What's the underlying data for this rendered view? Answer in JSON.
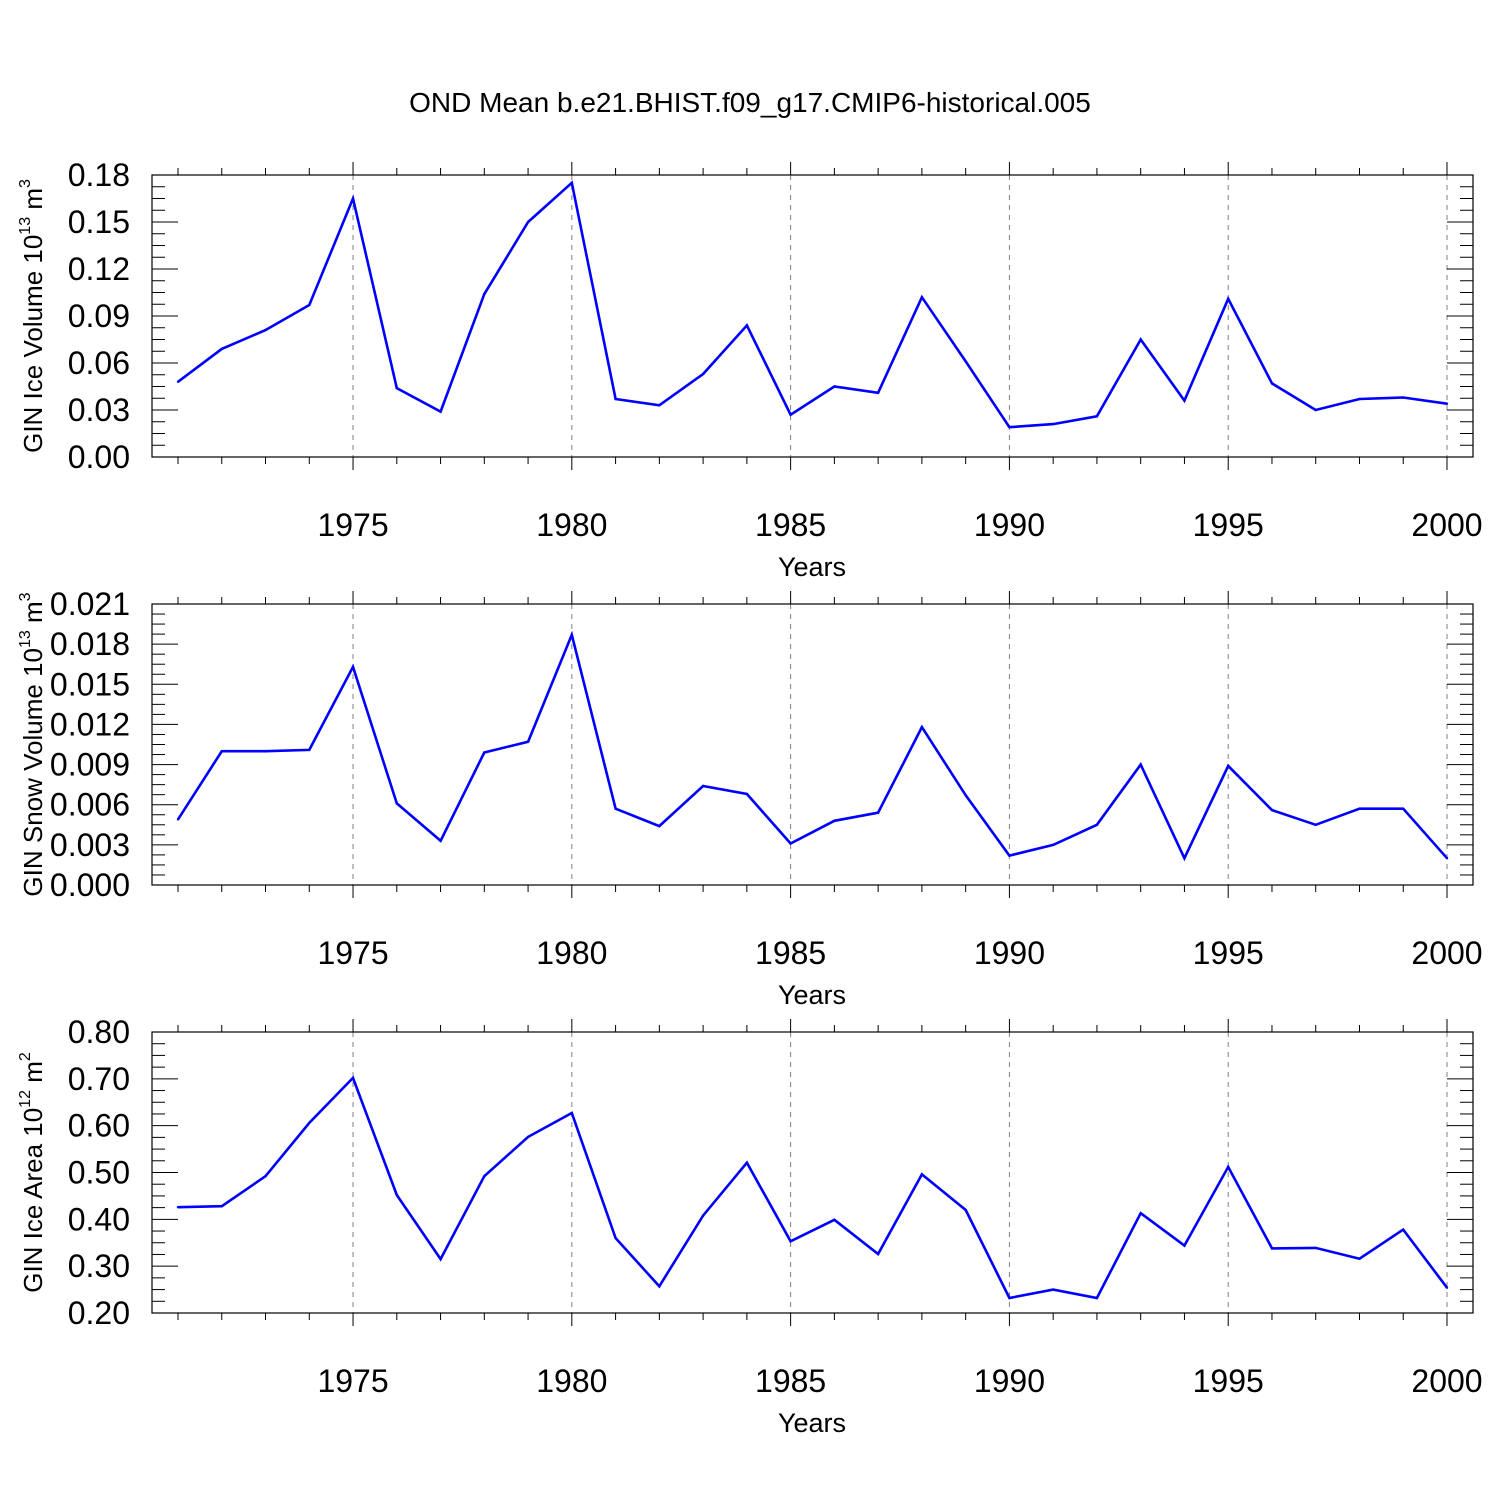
{
  "title": "OND Mean b.e21.BHIST.f09_g17.CMIP6-historical.005",
  "colors": {
    "line": "#0000ff",
    "axis": "#000000",
    "grid": "#808080"
  },
  "chart_data": [
    {
      "type": "line",
      "title": "",
      "xlabel": "Years",
      "ylabel": "GIN Ice Volume 10",
      "ylabel_exp": "13",
      "ylabel_unit": " m",
      "ylabel_unit_exp": "3",
      "xlim": [
        1971,
        2000
      ],
      "ylim": [
        0.0,
        0.18
      ],
      "x_ticks": [
        1975,
        1980,
        1985,
        1990,
        1995,
        2000
      ],
      "x_tick_labels": [
        "1975",
        "1980",
        "1985",
        "1990",
        "1995",
        "2000"
      ],
      "y_ticks": [
        0.0,
        0.03,
        0.06,
        0.09,
        0.12,
        0.15,
        0.18
      ],
      "y_tick_labels": [
        "0.00",
        "0.03",
        "0.06",
        "0.09",
        "0.12",
        "0.15",
        "0.18"
      ],
      "grid": "vertical-dashed",
      "x": [
        1971,
        1972,
        1973,
        1974,
        1975,
        1976,
        1977,
        1978,
        1979,
        1980,
        1981,
        1982,
        1983,
        1984,
        1985,
        1986,
        1987,
        1988,
        1989,
        1990,
        1991,
        1992,
        1993,
        1994,
        1995,
        1996,
        1997,
        1998,
        1999,
        2000
      ],
      "series": [
        {
          "values": [
            0.048,
            0.069,
            0.081,
            0.097,
            0.165,
            0.044,
            0.029,
            0.104,
            0.15,
            0.175,
            0.037,
            0.033,
            0.053,
            0.084,
            0.027,
            0.045,
            0.041,
            0.102,
            0.061,
            0.019,
            0.021,
            0.026,
            0.075,
            0.036,
            0.101,
            0.047,
            0.03,
            0.037,
            0.038,
            0.034
          ]
        }
      ]
    },
    {
      "type": "line",
      "title": "",
      "xlabel": "Years",
      "ylabel": "GIN Snow Volume 10",
      "ylabel_exp": "13",
      "ylabel_unit": " m",
      "ylabel_unit_exp": "3",
      "xlim": [
        1971,
        2000
      ],
      "ylim": [
        0.0,
        0.021
      ],
      "x_ticks": [
        1975,
        1980,
        1985,
        1990,
        1995,
        2000
      ],
      "x_tick_labels": [
        "1975",
        "1980",
        "1985",
        "1990",
        "1995",
        "2000"
      ],
      "y_ticks": [
        0.0,
        0.003,
        0.006,
        0.009,
        0.012,
        0.015,
        0.018,
        0.021
      ],
      "y_tick_labels": [
        "0.000",
        "0.003",
        "0.006",
        "0.009",
        "0.012",
        "0.015",
        "0.018",
        "0.021"
      ],
      "grid": "vertical-dashed",
      "x": [
        1971,
        1972,
        1973,
        1974,
        1975,
        1976,
        1977,
        1978,
        1979,
        1980,
        1981,
        1982,
        1983,
        1984,
        1985,
        1986,
        1987,
        1988,
        1989,
        1990,
        1991,
        1992,
        1993,
        1994,
        1995,
        1996,
        1997,
        1998,
        1999,
        2000
      ],
      "series": [
        {
          "values": [
            0.0049,
            0.01,
            0.01,
            0.0101,
            0.0163,
            0.0061,
            0.0033,
            0.0099,
            0.0107,
            0.0187,
            0.0057,
            0.0044,
            0.0074,
            0.0068,
            0.0031,
            0.0048,
            0.0054,
            0.0118,
            0.0067,
            0.0022,
            0.003,
            0.0045,
            0.009,
            0.002,
            0.0089,
            0.0056,
            0.0045,
            0.0057,
            0.0057,
            0.002
          ]
        }
      ]
    },
    {
      "type": "line",
      "title": "",
      "xlabel": "Years",
      "ylabel": "GIN Ice Area 10",
      "ylabel_exp": "12",
      "ylabel_unit": " m",
      "ylabel_unit_exp": "2",
      "xlim": [
        1971,
        2000
      ],
      "ylim": [
        0.2,
        0.8
      ],
      "x_ticks": [
        1975,
        1980,
        1985,
        1990,
        1995,
        2000
      ],
      "x_tick_labels": [
        "1975",
        "1980",
        "1985",
        "1990",
        "1995",
        "2000"
      ],
      "y_ticks": [
        0.2,
        0.3,
        0.4,
        0.5,
        0.6,
        0.7,
        0.8
      ],
      "y_tick_labels": [
        "0.20",
        "0.30",
        "0.40",
        "0.50",
        "0.60",
        "0.70",
        "0.80"
      ],
      "grid": "vertical-dashed",
      "x": [
        1971,
        1972,
        1973,
        1974,
        1975,
        1976,
        1977,
        1978,
        1979,
        1980,
        1981,
        1982,
        1983,
        1984,
        1985,
        1986,
        1987,
        1988,
        1989,
        1990,
        1991,
        1992,
        1993,
        1994,
        1995,
        1996,
        1997,
        1998,
        1999,
        2000
      ],
      "series": [
        {
          "values": [
            0.426,
            0.428,
            0.492,
            0.606,
            0.702,
            0.452,
            0.315,
            0.492,
            0.576,
            0.627,
            0.36,
            0.257,
            0.408,
            0.521,
            0.353,
            0.399,
            0.326,
            0.496,
            0.42,
            0.232,
            0.25,
            0.232,
            0.413,
            0.344,
            0.512,
            0.338,
            0.339,
            0.316,
            0.378,
            0.254
          ]
        }
      ]
    }
  ]
}
